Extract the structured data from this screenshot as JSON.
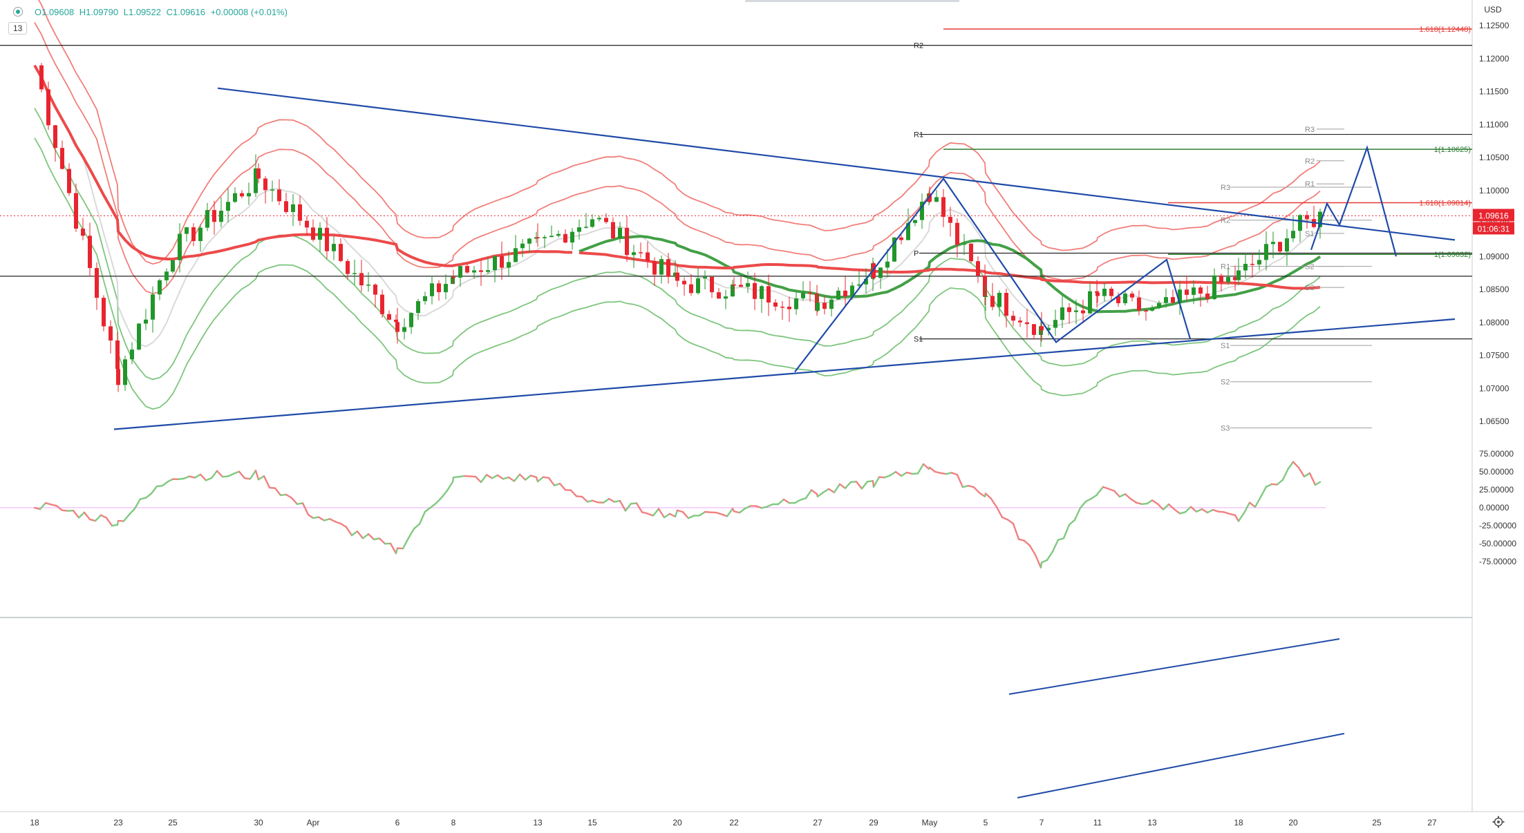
{
  "legend": {
    "open": "O1.09608",
    "high": "H1.09790",
    "low": "L1.09522",
    "close": "C1.09616",
    "change": "+0.00008 (+0.01%)",
    "indicator_count": "13"
  },
  "axis": {
    "currency": "USD",
    "last_price": "1.09616",
    "countdown": "01:06:31",
    "price_ticks": [
      "1.12500",
      "1.12000",
      "1.11500",
      "1.11000",
      "1.10500",
      "1.10000",
      "1.09500",
      "1.09000",
      "1.08500",
      "1.08000",
      "1.07500",
      "1.07000",
      "1.06500"
    ],
    "osc_ticks": [
      "75.00000",
      "50.00000",
      "25.00000",
      "0.00000",
      "-25.00000",
      "-50.00000",
      "-75.00000"
    ],
    "date_ticks": [
      "18",
      "23",
      "25",
      "30",
      "Apr",
      "6",
      "8",
      "13",
      "15",
      "20",
      "22",
      "27",
      "29",
      "May",
      "5",
      "7",
      "11",
      "13",
      "18",
      "20",
      "25",
      "27"
    ]
  },
  "levels": {
    "fib_top": "1.618(1.12448)",
    "fib_mid": "1.618(1.09814)",
    "fib_one_upper": "1(1.10625)",
    "fib_one_lower": "1(1.09032)",
    "pivot_monthly": [
      "R2",
      "R1",
      "P",
      "S1"
    ],
    "pivot_weekly_prev": [
      "R3",
      "R2",
      "R1",
      "S1",
      "S2",
      "S3"
    ],
    "pivot_weekly_curr": [
      "R3",
      "R2",
      "R1",
      "S1",
      "S2",
      "S3"
    ]
  },
  "colors": {
    "up": "#21962a",
    "down": "#e8252f",
    "trend": "#1f4aa8",
    "band_red": "#f0706a",
    "band_green": "#6fbf6f",
    "ma_red": "#ec4a4a",
    "ma_green": "#43a047",
    "osc_up": "#7fc97f",
    "osc_down": "#f08080",
    "fib": "#e53935",
    "fib_green": "#2e7d32"
  },
  "chart_data": [
    {
      "type": "candlestick",
      "symbol_pair_quote": "USD",
      "ylim": [
        1.0625,
        1.1275
      ],
      "x": [
        "18",
        "23",
        "25",
        "30",
        "Apr",
        "6",
        "8",
        "13",
        "15",
        "20",
        "22",
        "27",
        "29",
        "May",
        "5",
        "7",
        "11",
        "13",
        "18",
        "20",
        "25",
        "27"
      ],
      "close_series": [
        {
          "x": "18",
          "y": 1.119
        },
        {
          "x": "23",
          "y": 1.072
        },
        {
          "x": "25",
          "y": 1.091
        },
        {
          "x": "30",
          "y": 1.102
        },
        {
          "x": "Apr",
          "y": 1.094
        },
        {
          "x": "6",
          "y": 1.08
        },
        {
          "x": "8",
          "y": 1.087
        },
        {
          "x": "13",
          "y": 1.0915
        },
        {
          "x": "15",
          "y": 1.096
        },
        {
          "x": "20",
          "y": 1.086
        },
        {
          "x": "22",
          "y": 1.085
        },
        {
          "x": "27",
          "y": 1.083
        },
        {
          "x": "29",
          "y": 1.088
        },
        {
          "x": "May",
          "y": 1.1
        },
        {
          "x": "5",
          "y": 1.0845
        },
        {
          "x": "7",
          "y": 1.079
        },
        {
          "x": "11",
          "y": 1.084
        },
        {
          "x": "13",
          "y": 1.0815
        },
        {
          "x": "18",
          "y": 1.087
        },
        {
          "x": "20",
          "y": 1.094
        },
        {
          "x": "21",
          "y": 1.09616
        }
      ],
      "last_price": 1.09616
    },
    {
      "type": "line",
      "ylim": [
        -85,
        85
      ],
      "series": [
        {
          "values": [
            {
              "x": "18",
              "y": 5
            },
            {
              "x": "23",
              "y": -20
            },
            {
              "x": "25",
              "y": 45
            },
            {
              "x": "30",
              "y": 45
            },
            {
              "x": "Apr",
              "y": -10
            },
            {
              "x": "6",
              "y": -60
            },
            {
              "x": "8",
              "y": 40
            },
            {
              "x": "13",
              "y": 42
            },
            {
              "x": "15",
              "y": 10
            },
            {
              "x": "20",
              "y": -10
            },
            {
              "x": "22",
              "y": -5
            },
            {
              "x": "27",
              "y": 20
            },
            {
              "x": "29",
              "y": 35
            },
            {
              "x": "May",
              "y": 58
            },
            {
              "x": "5",
              "y": 20
            },
            {
              "x": "7",
              "y": -78
            },
            {
              "x": "11",
              "y": 25
            },
            {
              "x": "13",
              "y": 5
            },
            {
              "x": "18",
              "y": -15
            },
            {
              "x": "20",
              "y": 60
            },
            {
              "x": "21",
              "y": 30
            }
          ]
        }
      ]
    }
  ]
}
